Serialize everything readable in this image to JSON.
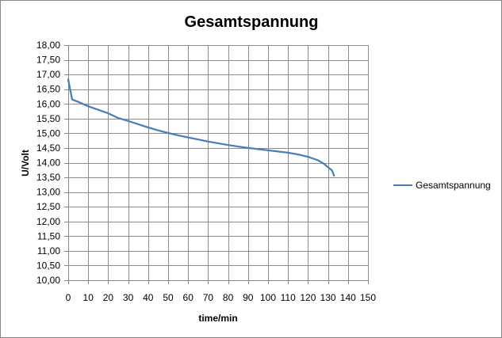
{
  "chart_data": {
    "type": "line",
    "title": "Gesamtspannung",
    "xlabel": "time/min",
    "ylabel": "U/Volt",
    "xlim": [
      0,
      150
    ],
    "ylim": [
      10,
      18
    ],
    "x_ticks": [
      "0",
      "10",
      "20",
      "30",
      "40",
      "50",
      "60",
      "70",
      "80",
      "90",
      "100",
      "110",
      "120",
      "130",
      "140",
      "150"
    ],
    "y_ticks": [
      "10,00",
      "10,50",
      "11,00",
      "11,50",
      "12,00",
      "12,50",
      "13,00",
      "13,50",
      "14,00",
      "14,50",
      "15,00",
      "15,50",
      "16,00",
      "16,50",
      "17,00",
      "17,50",
      "18,00"
    ],
    "grid": true,
    "legend_position": "right",
    "series": [
      {
        "name": "Gesamtspannung",
        "color": "#4a7ebb",
        "x": [
          0,
          2,
          5,
          10,
          15,
          20,
          25,
          30,
          35,
          40,
          45,
          50,
          55,
          60,
          65,
          70,
          75,
          80,
          85,
          90,
          95,
          100,
          105,
          110,
          115,
          120,
          125,
          128,
          130,
          132,
          133
        ],
        "y": [
          16.83,
          16.15,
          16.07,
          15.92,
          15.8,
          15.68,
          15.52,
          15.42,
          15.31,
          15.2,
          15.1,
          15.01,
          14.93,
          14.86,
          14.79,
          14.72,
          14.66,
          14.6,
          14.55,
          14.5,
          14.46,
          14.42,
          14.38,
          14.34,
          14.28,
          14.2,
          14.08,
          13.96,
          13.84,
          13.74,
          13.56
        ]
      }
    ]
  }
}
